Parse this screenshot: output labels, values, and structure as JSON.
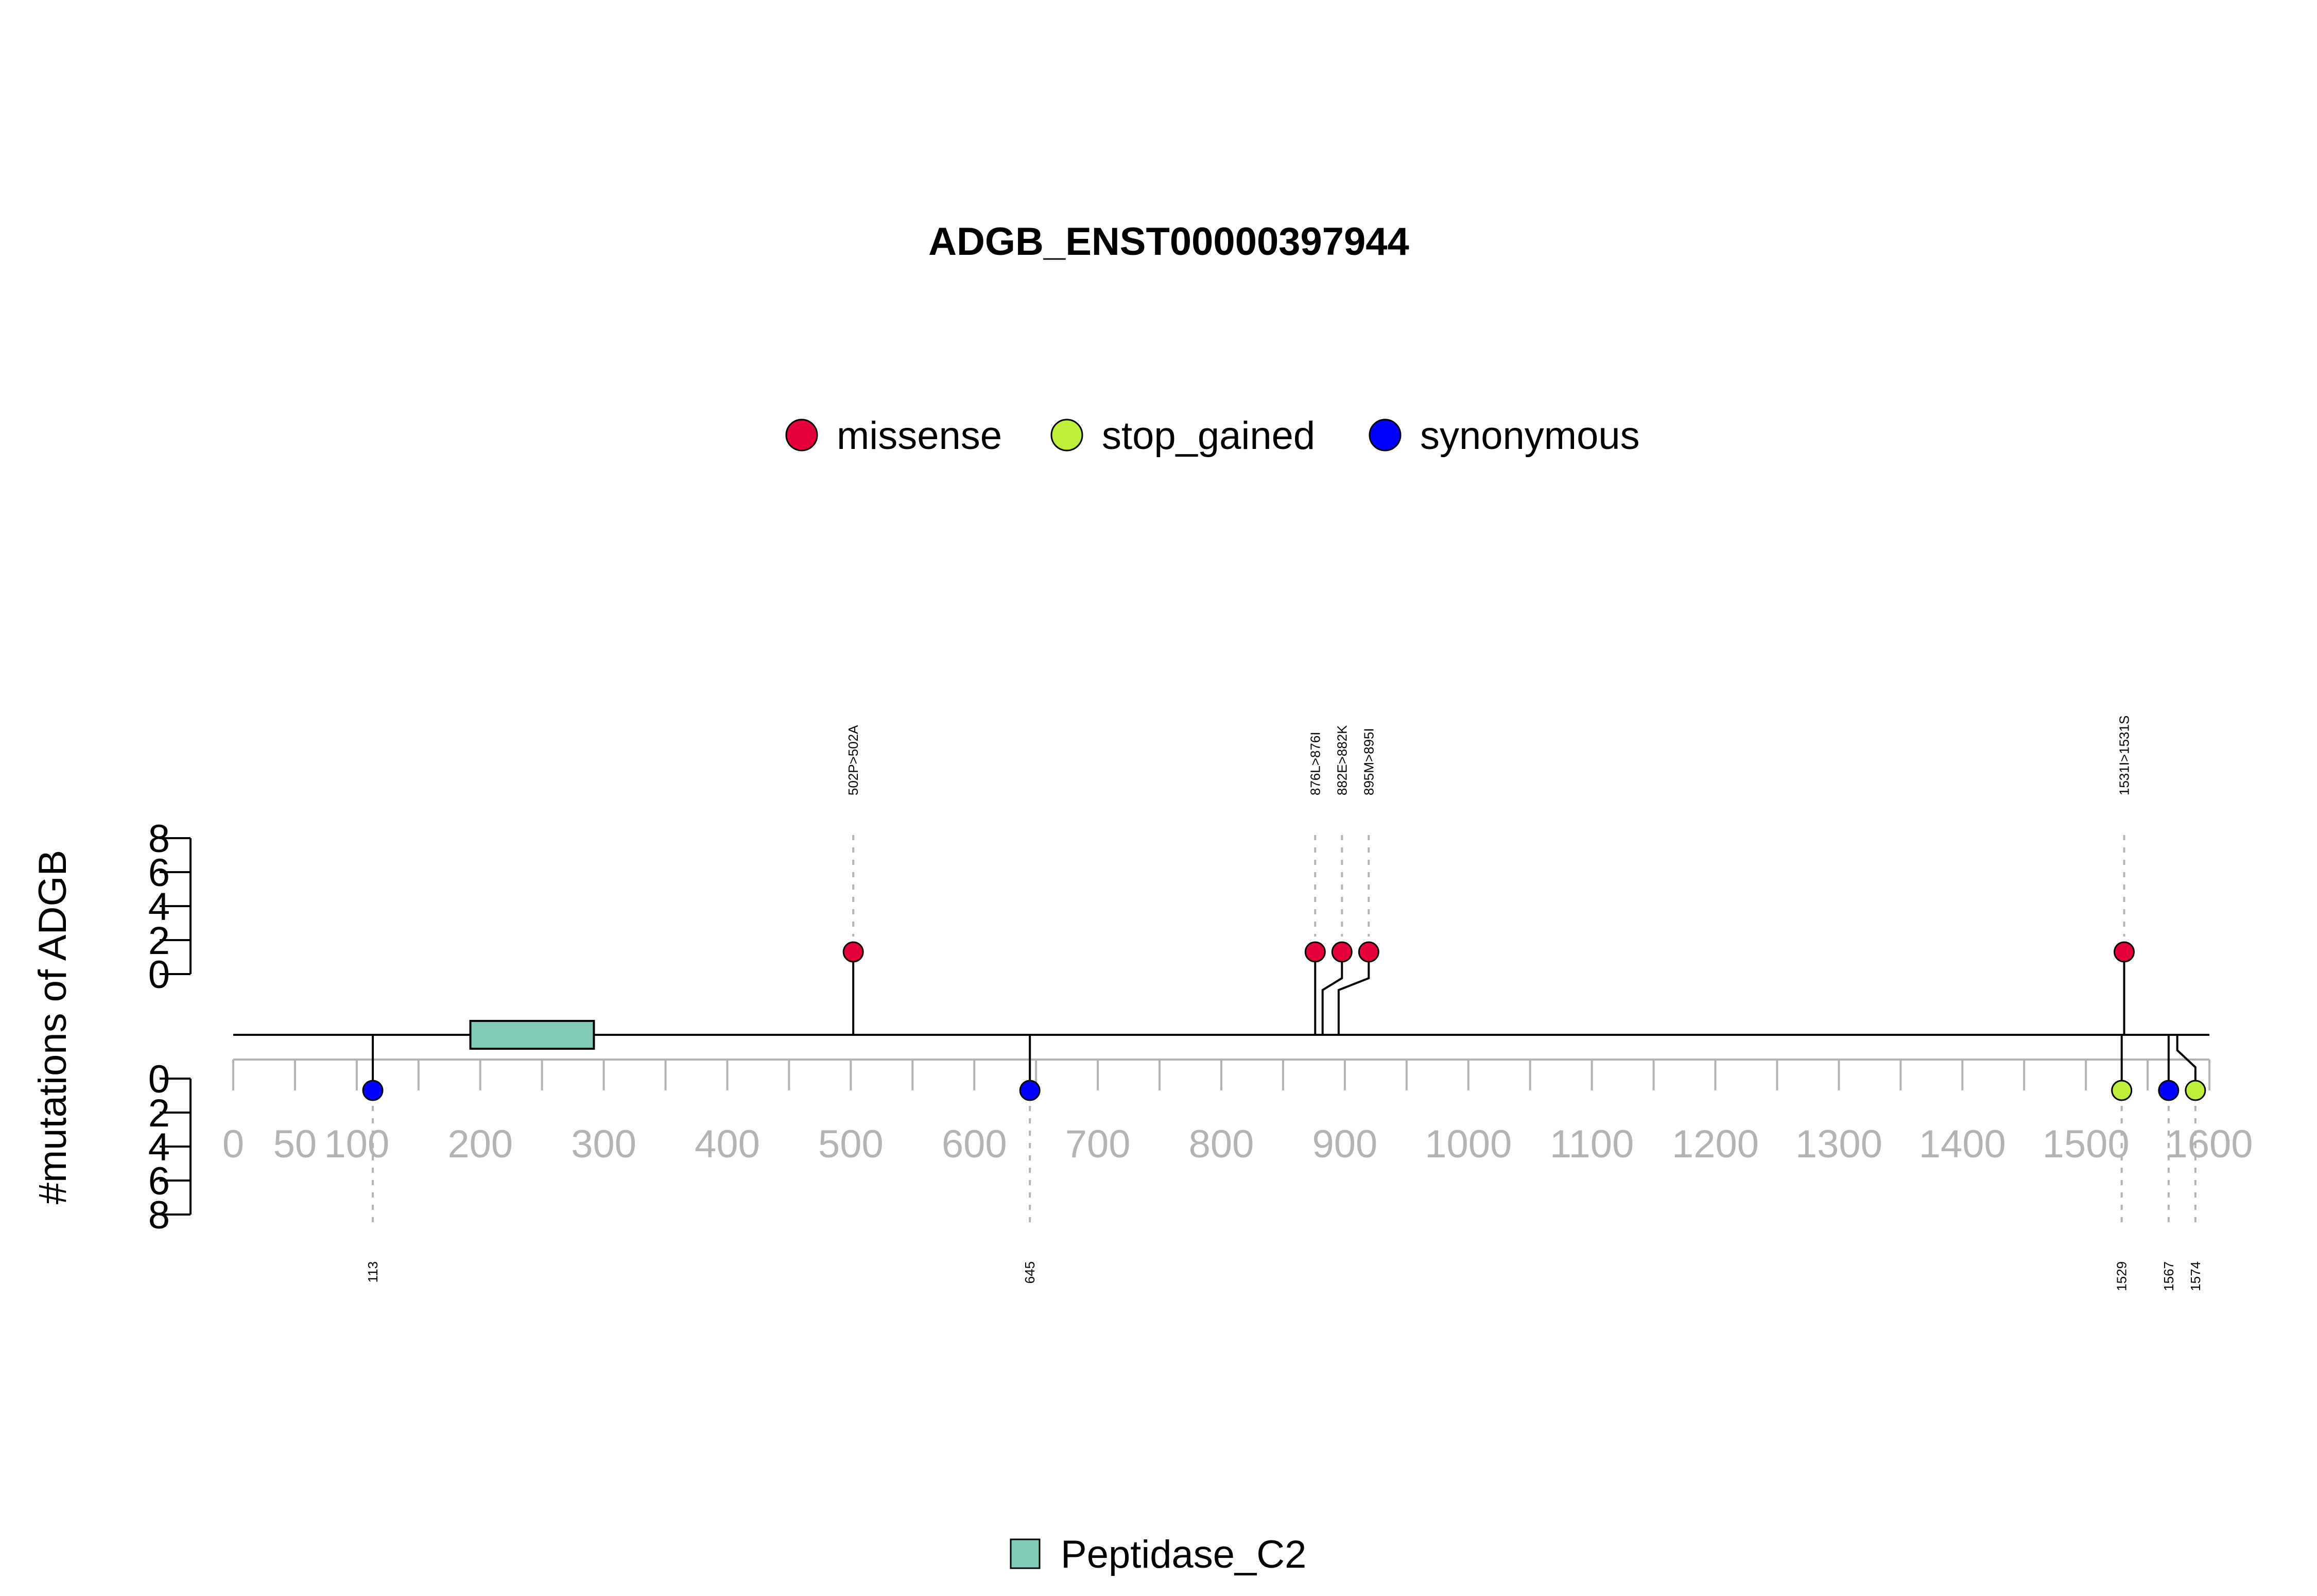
{
  "chart_data": {
    "type": "lollipop",
    "title": "ADGB_ENST00000397944",
    "ylabel": "#mutations of ADGB",
    "xlim": [
      0,
      1600
    ],
    "x_ticks": [
      "0",
      "50",
      "100",
      "200",
      "300",
      "400",
      "500",
      "600",
      "700",
      "800",
      "900",
      "1000",
      "1100",
      "1200",
      "1300",
      "1400",
      "1500",
      "1600"
    ],
    "y_ticks": [
      "0",
      "2",
      "4",
      "6",
      "8"
    ],
    "legend": [
      {
        "name": "missense",
        "color": "#E4003A"
      },
      {
        "name": "stop_gained",
        "color": "#BEEF3A"
      },
      {
        "name": "synonymous",
        "color": "#0000FF"
      }
    ],
    "domains": [
      {
        "name": "Peptidase_C2",
        "start": 192,
        "end": 292,
        "color": "#7FCBB8"
      }
    ],
    "mutations_top": [
      {
        "position": 502,
        "label": "502P>502A",
        "type": "missense",
        "count": 1
      },
      {
        "position": 876,
        "label": "876L>876I",
        "type": "missense",
        "count": 1
      },
      {
        "position": 882,
        "label": "882E>882K",
        "type": "missense",
        "count": 1
      },
      {
        "position": 895,
        "label": "895M>895I",
        "type": "missense",
        "count": 1
      },
      {
        "position": 1531,
        "label": "1531I>1531S",
        "type": "missense",
        "count": 1
      }
    ],
    "mutations_bottom": [
      {
        "position": 113,
        "label": "113",
        "type": "synonymous",
        "count": 1
      },
      {
        "position": 645,
        "label": "645",
        "type": "synonymous",
        "count": 1
      },
      {
        "position": 1529,
        "label": "1529",
        "type": "stop_gained",
        "count": 1
      },
      {
        "position": 1567,
        "label": "1567",
        "type": "synonymous",
        "count": 1
      },
      {
        "position": 1574,
        "label": "1574",
        "type": "stop_gained",
        "count": 1
      }
    ]
  }
}
